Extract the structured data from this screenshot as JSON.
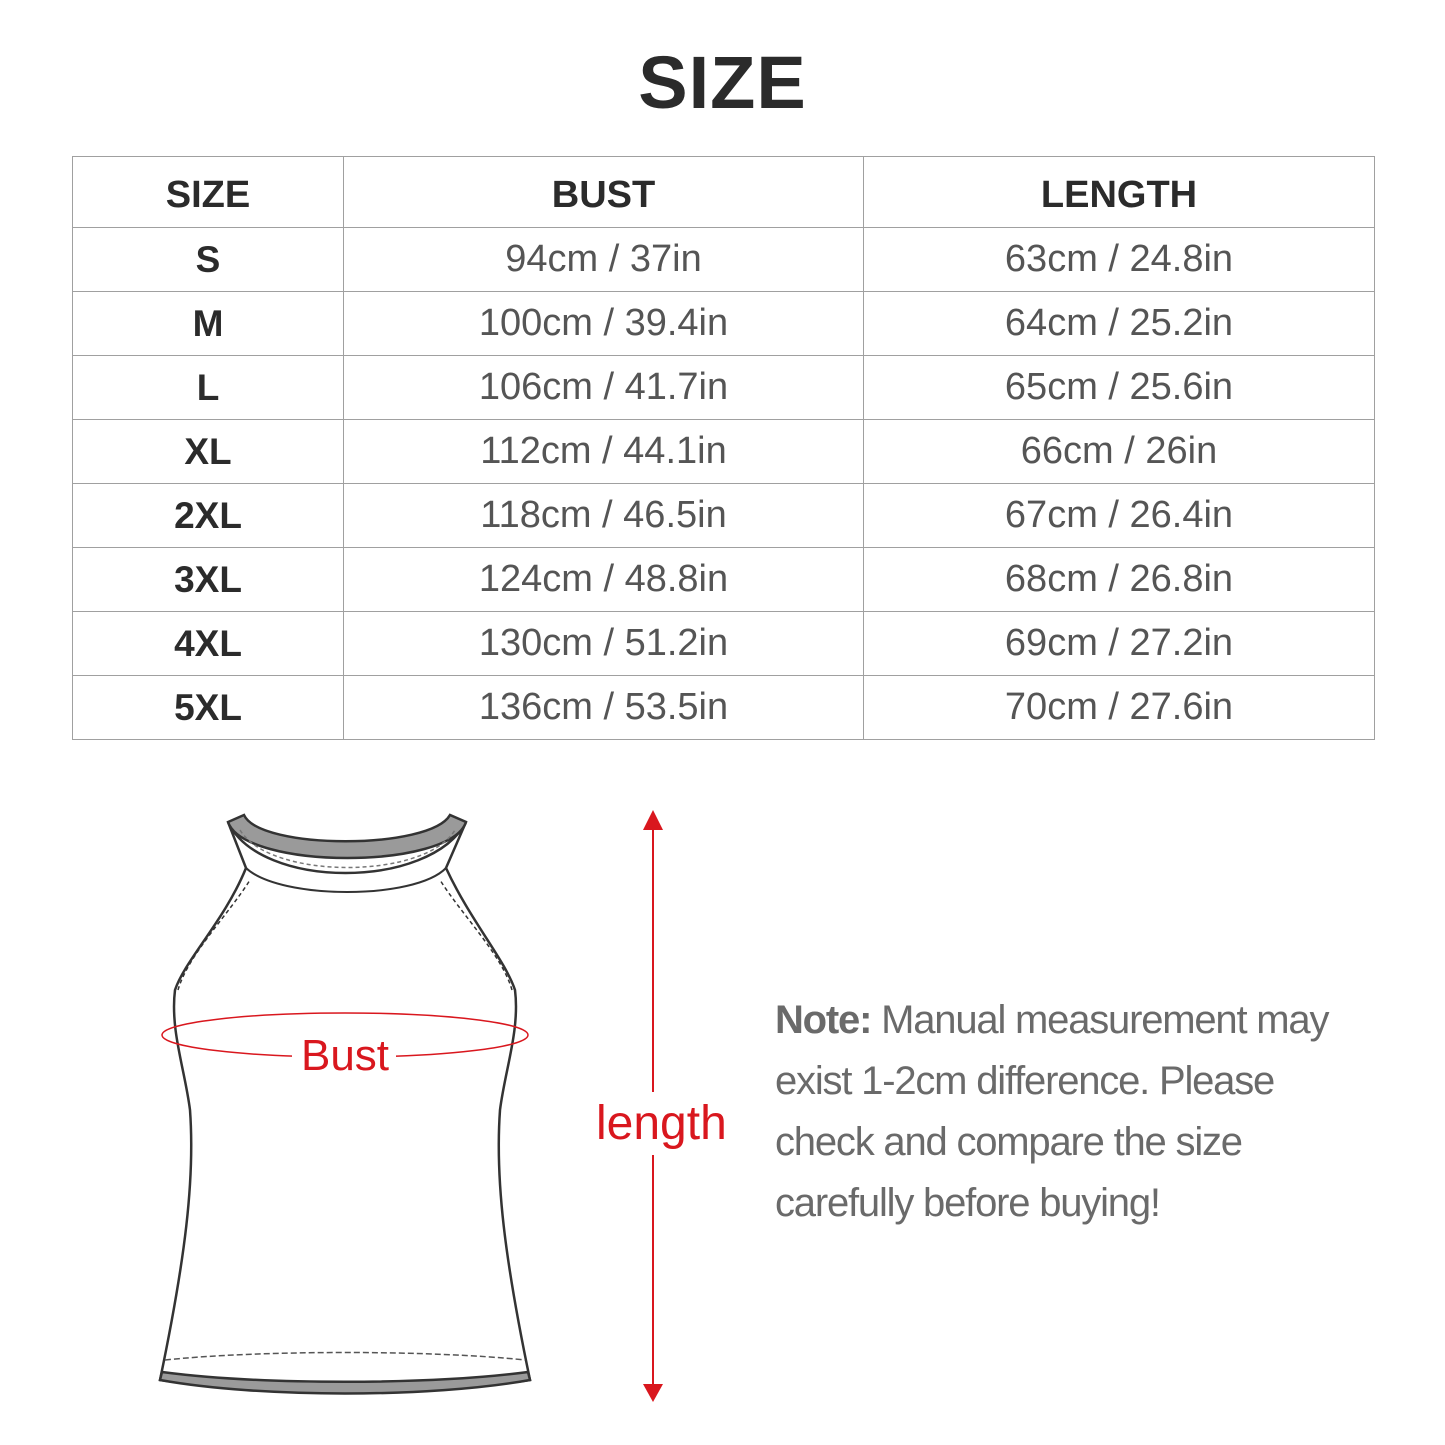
{
  "title": "SIZE",
  "table": {
    "headers": [
      "SIZE",
      "BUST",
      "LENGTH"
    ],
    "rows": [
      [
        "S",
        "94cm / 37in",
        "63cm / 24.8in"
      ],
      [
        "M",
        "100cm / 39.4in",
        "64cm / 25.2in"
      ],
      [
        "L",
        "106cm / 41.7in",
        "65cm / 25.6in"
      ],
      [
        "XL",
        "112cm / 44.1in",
        "66cm / 26in"
      ],
      [
        "2XL",
        "118cm / 46.5in",
        "67cm / 26.4in"
      ],
      [
        "3XL",
        "124cm / 48.8in",
        "68cm / 26.8in"
      ],
      [
        "4XL",
        "130cm / 51.2in",
        "69cm / 27.2in"
      ],
      [
        "5XL",
        "136cm / 53.5in",
        "70cm / 27.6in"
      ]
    ]
  },
  "diagram": {
    "bust_label": "Bust",
    "length_label": "length",
    "accent_color": "#d9171e"
  },
  "note": {
    "label": "Note:",
    "text": "Manual measurement may exist 1-2cm difference. Please check and compare the size carefully before buying!"
  }
}
